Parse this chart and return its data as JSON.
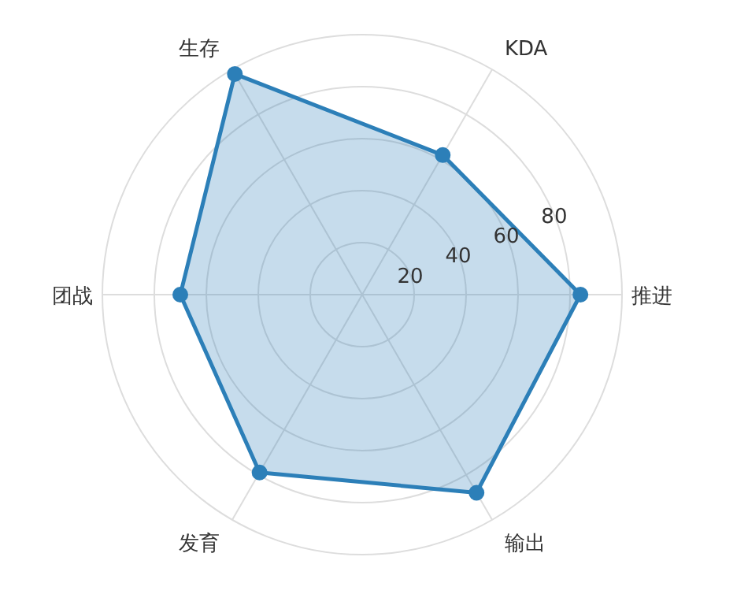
{
  "chart_data": {
    "type": "radar",
    "categories": [
      "KDA",
      "推进",
      "输出",
      "发育",
      "团战",
      "生存"
    ],
    "series": [
      {
        "color": "#2c7fb8",
        "values": [
          62,
          84,
          88,
          79,
          70,
          98
        ]
      }
    ],
    "ylim": [
      0,
      100
    ],
    "yticks": [
      20,
      40,
      60,
      80
    ],
    "grid": true,
    "marker": "circle"
  }
}
